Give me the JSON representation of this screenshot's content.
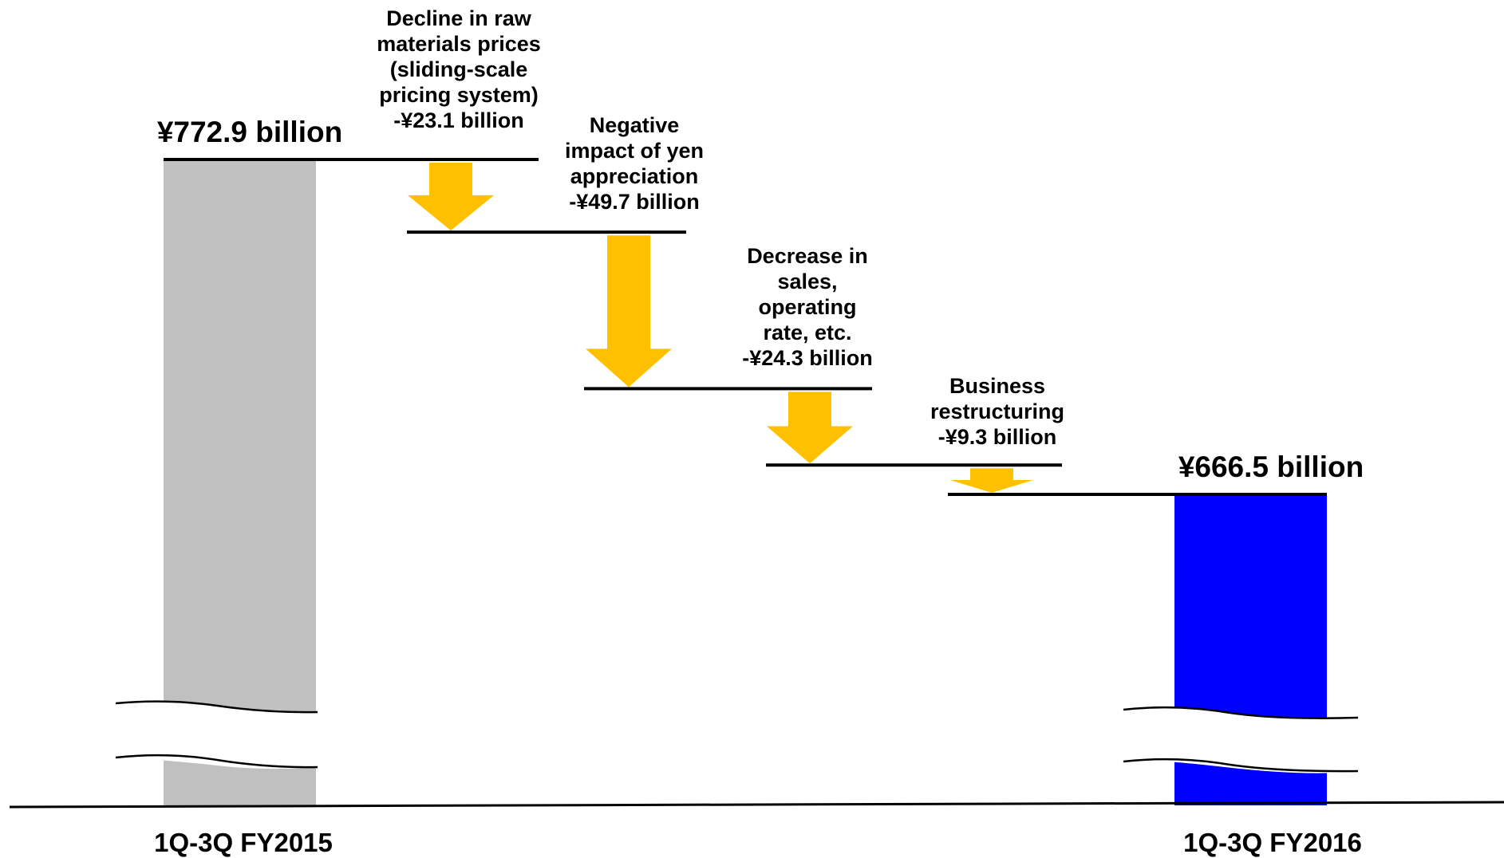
{
  "chart_data": {
    "type": "waterfall",
    "title": "",
    "xlabel": "",
    "ylabel": "",
    "unit": "¥ billion",
    "axis_break": true,
    "grid": false,
    "legend": "none",
    "start": {
      "category": "1Q-3Q FY2015",
      "value": 772.9,
      "value_label": "¥772.9 billion",
      "color": "#c0c0c0"
    },
    "end": {
      "category": "1Q-3Q FY2016",
      "value": 666.5,
      "value_label": "¥666.5 billion",
      "color": "#0000ff"
    },
    "steps": [
      {
        "label_lines": [
          "Decline in raw",
          "materials prices",
          "(sliding-scale",
          "pricing system)",
          "-¥23.1 billion"
        ],
        "value": -23.1
      },
      {
        "label_lines": [
          "Negative",
          "impact of yen",
          "appreciation",
          "-¥49.7 billion"
        ],
        "value": -49.7
      },
      {
        "label_lines": [
          "Decrease in",
          "sales,",
          "operating",
          "rate, etc.",
          "-¥24.3 billion"
        ],
        "value": -24.3
      },
      {
        "label_lines": [
          "Business",
          "restructuring",
          "-¥9.3 billion"
        ],
        "value": -9.3
      }
    ],
    "arrow_color": "#ffc000"
  }
}
